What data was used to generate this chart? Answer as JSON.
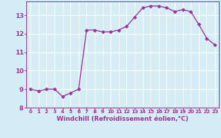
{
  "x": [
    0,
    1,
    2,
    3,
    4,
    5,
    6,
    7,
    8,
    9,
    10,
    11,
    12,
    13,
    14,
    15,
    16,
    17,
    18,
    19,
    20,
    21,
    22,
    23
  ],
  "y": [
    9.0,
    8.9,
    9.0,
    9.0,
    8.6,
    8.8,
    9.0,
    12.2,
    12.2,
    12.1,
    12.1,
    12.2,
    12.4,
    12.9,
    13.4,
    13.5,
    13.5,
    13.4,
    13.2,
    13.3,
    13.2,
    12.5,
    11.75,
    11.4
  ],
  "xlabel": "Windchill (Refroidissement éolien,°C)",
  "xlim": [
    -0.5,
    23.5
  ],
  "ylim": [
    8.25,
    13.75
  ],
  "yticks": [
    8,
    9,
    10,
    11,
    12,
    13
  ],
  "xticks": [
    0,
    1,
    2,
    3,
    4,
    5,
    6,
    7,
    8,
    9,
    10,
    11,
    12,
    13,
    14,
    15,
    16,
    17,
    18,
    19,
    20,
    21,
    22,
    23
  ],
  "line_color": "#993399",
  "marker": "D",
  "marker_size": 2.5,
  "bg_color": "#d5eef5",
  "grid_color": "#ffffff",
  "tick_color": "#993399",
  "label_color": "#993399",
  "spine_color": "#993399",
  "xlabel_fontsize": 6.5,
  "xtick_fontsize": 5.2,
  "ytick_fontsize": 6.5,
  "linewidth": 1.0
}
